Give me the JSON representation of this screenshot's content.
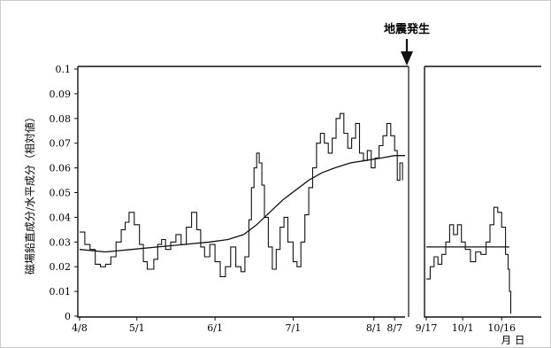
{
  "annotation": {
    "label": "地震発生"
  },
  "chart_data": {
    "type": "line",
    "ylabel": "磁場鉛直成分/水平成分（相対値）",
    "xunit_label": "月 日",
    "ylim": [
      0,
      0.1
    ],
    "yticks": [
      "0",
      "0.01",
      "0.02",
      "0.03",
      "0.04",
      "0.05",
      "0.06",
      "0.07",
      "0.08",
      "0.09",
      "0.1"
    ],
    "panels": [
      {
        "x_tick_labels": [
          "4/8",
          "5/1",
          "6/1",
          "7/1",
          "8/1",
          "8/7"
        ],
        "raw_series": [
          [
            0.0,
            0.034
          ],
          [
            2.0,
            0.029
          ],
          [
            4.0,
            0.027
          ],
          [
            6.0,
            0.021
          ],
          [
            8.0,
            0.02
          ],
          [
            10.0,
            0.021
          ],
          [
            12.0,
            0.024
          ],
          [
            14.0,
            0.03
          ],
          [
            16.0,
            0.035
          ],
          [
            17.5,
            0.038
          ],
          [
            19.0,
            0.042
          ],
          [
            21.0,
            0.037
          ],
          [
            23.0,
            0.029
          ],
          [
            24.5,
            0.022
          ],
          [
            26.0,
            0.019
          ],
          [
            28.5,
            0.023
          ],
          [
            30.0,
            0.029
          ],
          [
            31.5,
            0.031
          ],
          [
            33.0,
            0.027
          ],
          [
            35.0,
            0.03
          ],
          [
            37.0,
            0.033
          ],
          [
            39.0,
            0.029
          ],
          [
            41.0,
            0.036
          ],
          [
            43.0,
            0.042
          ],
          [
            45.0,
            0.035
          ],
          [
            46.5,
            0.028
          ],
          [
            48.0,
            0.024
          ],
          [
            50.0,
            0.029
          ],
          [
            52.0,
            0.022
          ],
          [
            54.0,
            0.016
          ],
          [
            56.0,
            0.02
          ],
          [
            58.0,
            0.028
          ],
          [
            60.0,
            0.02
          ],
          [
            62.0,
            0.018
          ],
          [
            63.5,
            0.024
          ],
          [
            65.0,
            0.039
          ],
          [
            66.0,
            0.052
          ],
          [
            67.0,
            0.06
          ],
          [
            68.0,
            0.066
          ],
          [
            69.0,
            0.062
          ],
          [
            70.0,
            0.053
          ],
          [
            71.0,
            0.04
          ],
          [
            72.5,
            0.028
          ],
          [
            74.0,
            0.019
          ],
          [
            75.5,
            0.027
          ],
          [
            77.0,
            0.036
          ],
          [
            78.5,
            0.04
          ],
          [
            80.0,
            0.03
          ],
          [
            82.0,
            0.022
          ],
          [
            83.5,
            0.02
          ],
          [
            85.0,
            0.03
          ],
          [
            86.5,
            0.041
          ],
          [
            88.0,
            0.052
          ],
          [
            89.5,
            0.06
          ],
          [
            91.0,
            0.07
          ],
          [
            92.5,
            0.074
          ],
          [
            94.0,
            0.07
          ],
          [
            95.5,
            0.066
          ],
          [
            97.0,
            0.072
          ],
          [
            98.5,
            0.08
          ],
          [
            100.0,
            0.082
          ],
          [
            101.5,
            0.074
          ],
          [
            103.0,
            0.068
          ],
          [
            104.5,
            0.072
          ],
          [
            106.0,
            0.078
          ],
          [
            107.5,
            0.066
          ],
          [
            109.0,
            0.063
          ],
          [
            110.5,
            0.067
          ],
          [
            112.0,
            0.06
          ],
          [
            113.5,
            0.064
          ],
          [
            115.0,
            0.069
          ],
          [
            116.5,
            0.073
          ],
          [
            118.0,
            0.078
          ],
          [
            119.5,
            0.073
          ],
          [
            121.0,
            0.067
          ],
          [
            122.0,
            0.055
          ],
          [
            123.0,
            0.062
          ],
          [
            124.0,
            0.055
          ]
        ],
        "smooth_series": [
          [
            0,
            0.027
          ],
          [
            10,
            0.026
          ],
          [
            20,
            0.027
          ],
          [
            30,
            0.028
          ],
          [
            40,
            0.029
          ],
          [
            50,
            0.03
          ],
          [
            57,
            0.031
          ],
          [
            63,
            0.033
          ],
          [
            68,
            0.037
          ],
          [
            73,
            0.042
          ],
          [
            78,
            0.047
          ],
          [
            83,
            0.051
          ],
          [
            88,
            0.055
          ],
          [
            93,
            0.058
          ],
          [
            98,
            0.06
          ],
          [
            104,
            0.062
          ],
          [
            110,
            0.063
          ],
          [
            116,
            0.064
          ],
          [
            121,
            0.065
          ],
          [
            125,
            0.065
          ]
        ]
      },
      {
        "x_tick_labels": [
          "9/17",
          "10/1",
          "10/16"
        ],
        "raw_series": [
          [
            0.0,
            0.015
          ],
          [
            1.5,
            0.02
          ],
          [
            3.0,
            0.024
          ],
          [
            4.5,
            0.021
          ],
          [
            6.0,
            0.025
          ],
          [
            7.5,
            0.03
          ],
          [
            9.0,
            0.037
          ],
          [
            10.5,
            0.033
          ],
          [
            12.0,
            0.037
          ],
          [
            13.5,
            0.03
          ],
          [
            15.0,
            0.027
          ],
          [
            17.0,
            0.022
          ],
          [
            19.0,
            0.026
          ],
          [
            21.0,
            0.025
          ],
          [
            23.0,
            0.03
          ],
          [
            24.5,
            0.037
          ],
          [
            26.0,
            0.044
          ],
          [
            27.5,
            0.042
          ],
          [
            29.0,
            0.036
          ],
          [
            30.5,
            0.025
          ],
          [
            31.5,
            0.019
          ],
          [
            32.0,
            0.01
          ],
          [
            32.5,
            0.001
          ]
        ],
        "smooth_series": [
          [
            0,
            0.028
          ],
          [
            32,
            0.028
          ]
        ]
      }
    ]
  }
}
